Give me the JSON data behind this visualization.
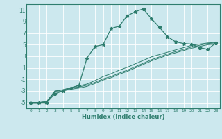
{
  "background_color": "#cce8ee",
  "grid_color": "#ffffff",
  "line_color": "#2e7d6e",
  "xlabel": "Humidex (Indice chaleur)",
  "ylim": [
    -6,
    12
  ],
  "xlim": [
    -0.5,
    23.5
  ],
  "yticks": [
    -5,
    -3,
    -1,
    1,
    3,
    5,
    7,
    9,
    11
  ],
  "xticks": [
    0,
    1,
    2,
    3,
    4,
    5,
    6,
    7,
    8,
    9,
    10,
    11,
    12,
    13,
    14,
    15,
    16,
    17,
    18,
    19,
    20,
    21,
    22,
    23
  ],
  "main_x": [
    0,
    1,
    2,
    3,
    4,
    5,
    6,
    7,
    8,
    9,
    10,
    11,
    12,
    13,
    14,
    15,
    16,
    17,
    18,
    19,
    20,
    21,
    22,
    23
  ],
  "main_y": [
    -5,
    -5,
    -5,
    -3.5,
    -3.0,
    -2.5,
    -2.0,
    2.7,
    4.7,
    5.0,
    7.8,
    8.2,
    10.0,
    10.7,
    11.2,
    9.5,
    8.0,
    6.4,
    5.5,
    5.2,
    5.1,
    4.5,
    4.2,
    5.3
  ],
  "line2_x": [
    0,
    1,
    2,
    3,
    4,
    5,
    6,
    7,
    8,
    9,
    10,
    11,
    12,
    13,
    14,
    15,
    16,
    17,
    18,
    19,
    20,
    21,
    22,
    23
  ],
  "line2_y": [
    -5,
    -5,
    -4.8,
    -3.0,
    -2.8,
    -2.5,
    -2.3,
    -2.0,
    -1.5,
    -0.9,
    -0.5,
    0.1,
    0.6,
    1.2,
    1.8,
    2.4,
    2.9,
    3.4,
    3.8,
    4.2,
    4.6,
    4.9,
    5.2,
    5.3
  ],
  "line3_x": [
    0,
    1,
    2,
    3,
    4,
    5,
    6,
    7,
    8,
    9,
    10,
    11,
    12,
    13,
    14,
    15,
    16,
    17,
    18,
    19,
    20,
    21,
    22,
    23
  ],
  "line3_y": [
    -5,
    -5,
    -4.9,
    -3.2,
    -3.0,
    -2.7,
    -2.5,
    -2.2,
    -1.7,
    -1.1,
    -0.7,
    -0.1,
    0.4,
    1.0,
    1.6,
    2.2,
    2.7,
    3.2,
    3.6,
    4.0,
    4.4,
    4.7,
    5.0,
    5.1
  ],
  "line4_x": [
    0,
    1,
    2,
    3,
    4,
    5,
    6,
    7,
    8,
    9,
    10,
    11,
    12,
    13,
    14,
    15,
    16,
    17,
    18,
    19,
    20,
    21,
    22,
    23
  ],
  "line4_y": [
    -5,
    -5,
    -4.9,
    -3.1,
    -2.8,
    -2.4,
    -2.1,
    -1.8,
    -1.2,
    -0.5,
    0.0,
    0.6,
    1.1,
    1.7,
    2.3,
    2.9,
    3.3,
    3.7,
    4.1,
    4.5,
    4.9,
    5.1,
    5.3,
    5.4
  ]
}
